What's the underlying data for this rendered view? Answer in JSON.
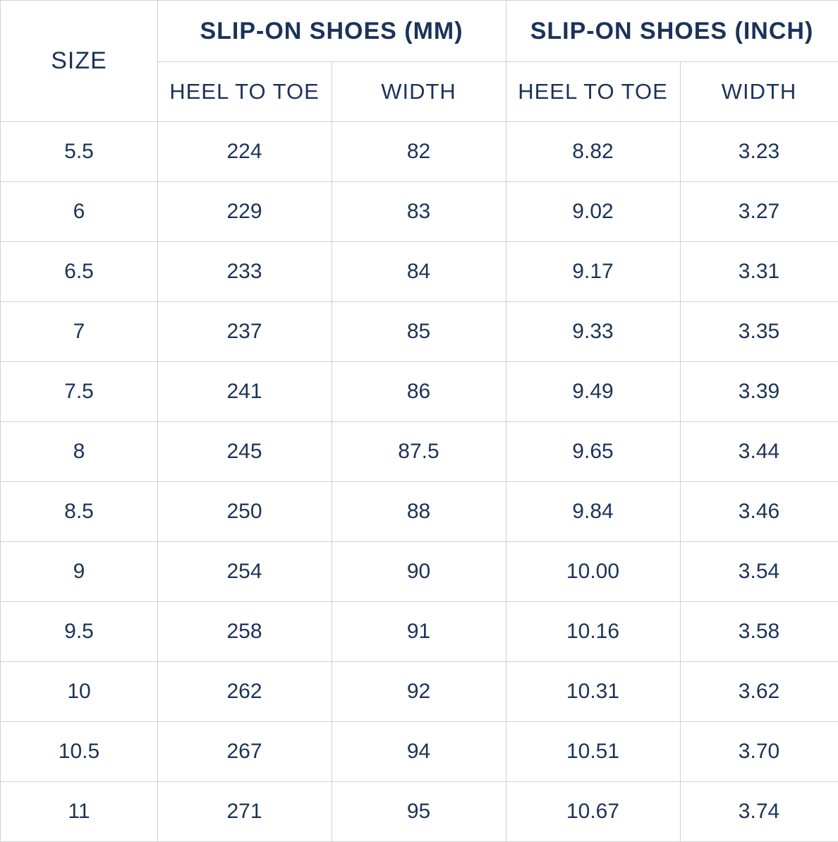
{
  "table": {
    "size_header": "SIZE",
    "groups": [
      "SLIP-ON SHOES (MM)",
      "SLIP-ON SHOES (INCH)"
    ],
    "subheaders": [
      "HEEL TO TOE",
      "WIDTH",
      "HEEL TO TOE",
      "WIDTH"
    ],
    "rows": [
      [
        "5.5",
        "224",
        "82",
        "8.82",
        "3.23"
      ],
      [
        "6",
        "229",
        "83",
        "9.02",
        "3.27"
      ],
      [
        "6.5",
        "233",
        "84",
        "9.17",
        "3.31"
      ],
      [
        "7",
        "237",
        "85",
        "9.33",
        "3.35"
      ],
      [
        "7.5",
        "241",
        "86",
        "9.49",
        "3.39"
      ],
      [
        "8",
        "245",
        "87.5",
        "9.65",
        "3.44"
      ],
      [
        "8.5",
        "250",
        "88",
        "9.84",
        "3.46"
      ],
      [
        "9",
        "254",
        "90",
        "10.00",
        "3.54"
      ],
      [
        "9.5",
        "258",
        "91",
        "10.16",
        "3.58"
      ],
      [
        "10",
        "262",
        "92",
        "10.31",
        "3.62"
      ],
      [
        "10.5",
        "267",
        "94",
        "10.51",
        "3.70"
      ],
      [
        "11",
        "271",
        "95",
        "10.67",
        "3.74"
      ]
    ]
  }
}
